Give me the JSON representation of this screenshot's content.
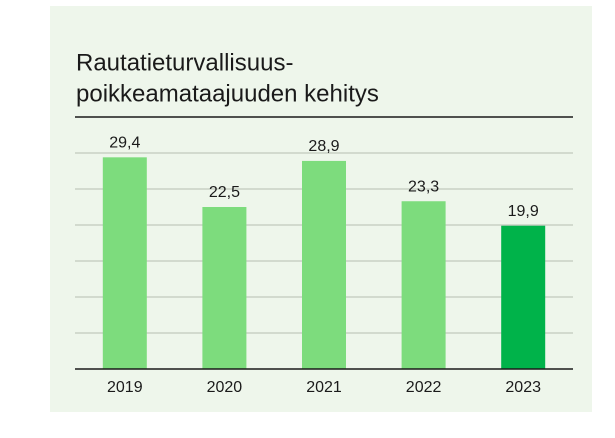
{
  "chart_data": {
    "type": "bar",
    "title": [
      "Rautatieturvallisuus-",
      "poikkeamataajuuden kehitys"
    ],
    "categories": [
      "2019",
      "2020",
      "2021",
      "2022",
      "2023"
    ],
    "values": [
      29.4,
      22.5,
      28.9,
      23.3,
      19.9
    ],
    "value_labels": [
      "29,4",
      "22,5",
      "28,9",
      "23,3",
      "19,9"
    ],
    "colors": [
      "#7ddc7d",
      "#7ddc7d",
      "#7ddc7d",
      "#7ddc7d",
      "#00b34a"
    ],
    "ylim": [
      0,
      35
    ],
    "yticks": [
      0,
      5,
      10,
      15,
      20,
      25,
      30,
      35
    ],
    "grid": true
  }
}
